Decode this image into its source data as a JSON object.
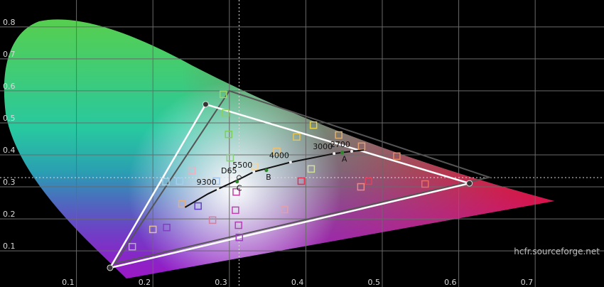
{
  "chart_data": {
    "type": "cie",
    "xlim": [
      0,
      0.79
    ],
    "ylim": [
      -0.013,
      0.884
    ],
    "xticks": [
      0.1,
      0.2,
      0.3,
      0.4,
      0.5,
      0.6,
      0.7
    ],
    "yticks": [
      0.1,
      0.2,
      0.3,
      0.4,
      0.5,
      0.6,
      0.7,
      0.8
    ],
    "grid": true,
    "reference_gamut": {
      "x": [
        0.64,
        0.3,
        0.15
      ],
      "y": [
        0.33,
        0.6,
        0.06
      ],
      "color": "#555555"
    },
    "gamut": {
      "x": [
        0.614,
        0.269,
        0.144
      ],
      "y": [
        0.311,
        0.558,
        0.047
      ],
      "color": "#ffffff"
    },
    "locus": {
      "x": [
        0.242,
        0.272,
        0.285,
        0.313,
        0.332,
        0.38,
        0.437,
        0.46,
        0.476
      ],
      "y": [
        0.236,
        0.278,
        0.293,
        0.324,
        0.347,
        0.377,
        0.404,
        0.411,
        0.415
      ],
      "color": "#111111"
    },
    "white_point": {
      "label": "D65",
      "x": 0.3127,
      "y": 0.329
    },
    "cct_points": [
      {
        "label": "9300",
        "x": 0.285,
        "y": 0.293
      },
      {
        "label": "5500",
        "x": 0.332,
        "y": 0.347
      },
      {
        "label": "4000",
        "x": 0.38,
        "y": 0.377
      },
      {
        "label": "3000",
        "x": 0.437,
        "y": 0.404
      },
      {
        "label": "2700",
        "x": 0.46,
        "y": 0.411
      }
    ],
    "illuminants": [
      {
        "label": "A",
        "x": 0.4476,
        "y": 0.4074
      },
      {
        "label": "B",
        "x": 0.3484,
        "y": 0.3516
      },
      {
        "label": "C",
        "x": 0.3101,
        "y": 0.3162
      }
    ],
    "saturations": {
      "x": [
        0.292,
        0.295,
        0.299,
        0.301,
        0.41,
        0.388,
        0.362,
        0.333,
        0.443,
        0.473,
        0.519,
        0.556,
        0.482,
        0.472,
        0.394,
        0.372,
        0.309,
        0.308,
        0.312,
        0.313,
        0.218,
        0.2,
        0.173,
        0.217,
        0.235,
        0.251,
        0.259,
        0.238,
        0.278,
        0.283,
        0.407
      ],
      "y": [
        0.589,
        0.531,
        0.464,
        0.391,
        0.493,
        0.456,
        0.411,
        0.364,
        0.462,
        0.427,
        0.396,
        0.309,
        0.318,
        0.3,
        0.318,
        0.229,
        0.284,
        0.227,
        0.18,
        0.142,
        0.173,
        0.167,
        0.113,
        0.316,
        0.318,
        0.351,
        0.24,
        0.247,
        0.196,
        0.318,
        0.356
      ],
      "colors": [
        "#9bd96a",
        "#8fd060",
        "#7fcf5a",
        "#8ad07a",
        "#e8d24a",
        "#e8c450",
        "#f0c070",
        "#f4d6a0",
        "#e0b070",
        "#e0a070",
        "#e08a60",
        "#e8706a",
        "#e8405a",
        "#f08a8a",
        "#e03050",
        "#e0a0b0",
        "#c040a0",
        "#c040b0",
        "#b040b0",
        "#a040c0",
        "#8040c0",
        "#e0c0a0",
        "#c0a0e0",
        "#a0d0e0",
        "#a0d0f0",
        "#f0b0c0",
        "#6040c0",
        "#e0b080",
        "#d080a0",
        "#a0c8f0",
        "#d0e0a0"
      ]
    },
    "credit": "hcfr.sourceforge.net"
  }
}
